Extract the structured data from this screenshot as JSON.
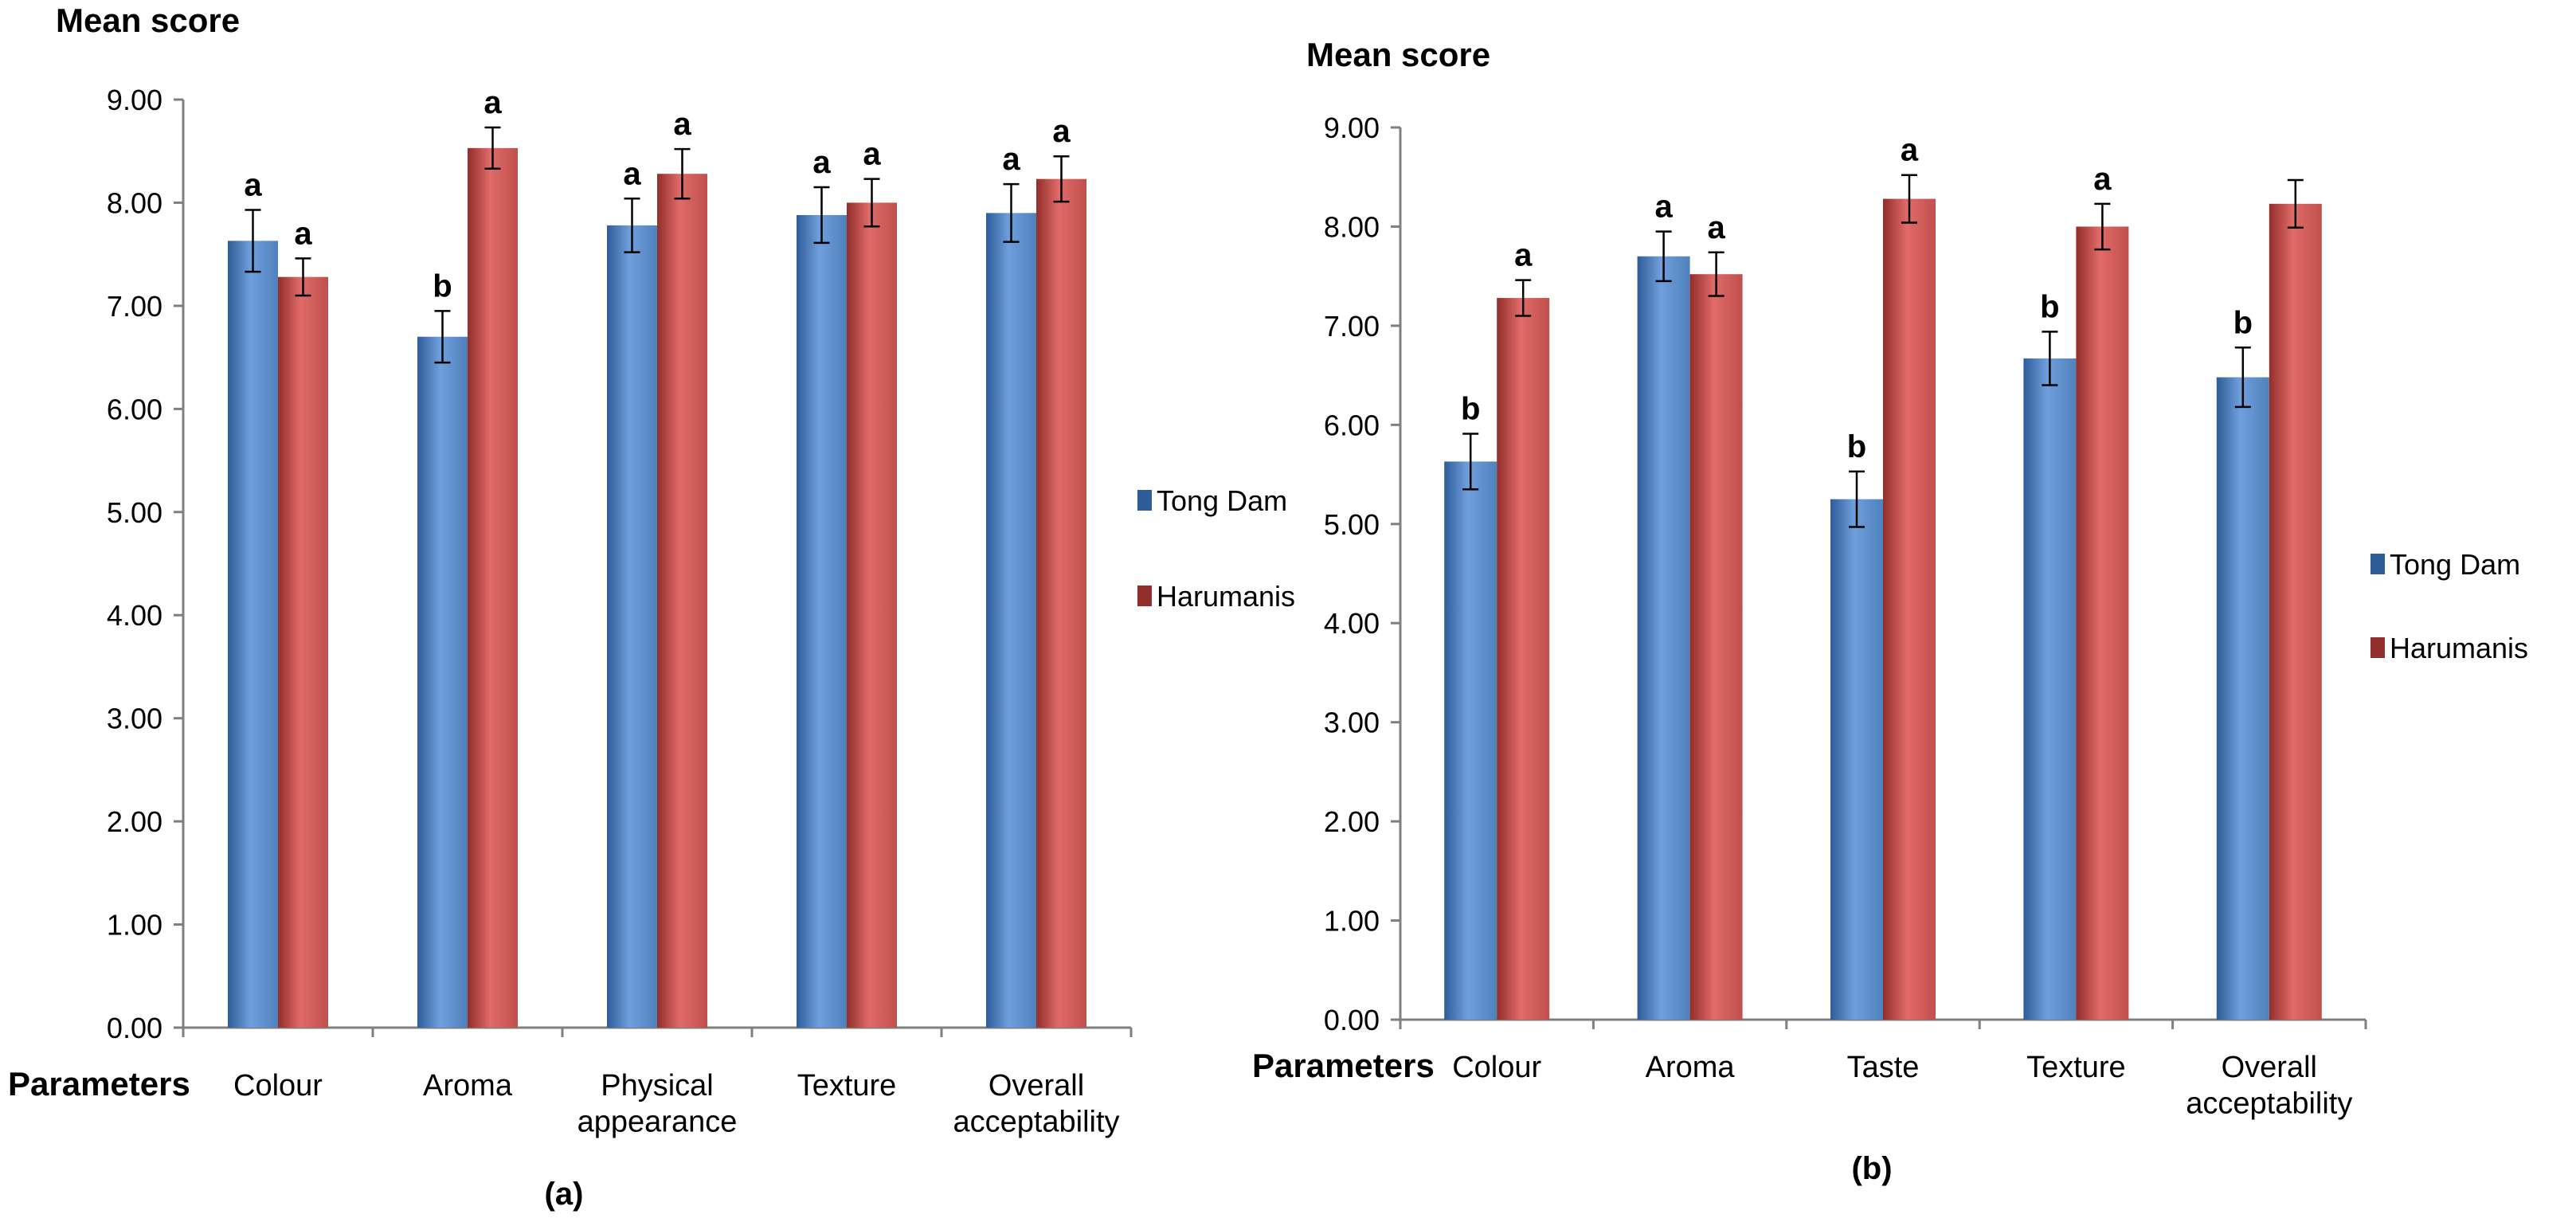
{
  "figure": {
    "legend": [
      "Tong Dam",
      "Harumanis"
    ],
    "colors": {
      "tong_dam": "#4f81bd",
      "tong_dam_dark": "#2e5c99",
      "tong_dam_light": "#6f9fdc",
      "harumanis": "#c0504d",
      "harumanis_dark": "#922e2b",
      "harumanis_light": "#e06b68",
      "axis": "#7f7f7f"
    }
  },
  "chart_data": [
    {
      "type": "bar",
      "panel_label": "(a)",
      "ylabel": "Mean score",
      "xlabel": "Parameters",
      "ylim": [
        0,
        9
      ],
      "y_ticks": [
        "0.00",
        "1.00",
        "2.00",
        "3.00",
        "4.00",
        "5.00",
        "6.00",
        "7.00",
        "8.00",
        "9.00"
      ],
      "categories": [
        [
          "Colour"
        ],
        [
          "Aroma"
        ],
        [
          "Physical",
          "appearance"
        ],
        [
          "Texture"
        ],
        [
          "Overall",
          "acceptability"
        ]
      ],
      "series": [
        {
          "name": "Tong Dam",
          "values": [
            7.63,
            6.7,
            7.78,
            7.88,
            7.9
          ],
          "errors": [
            0.3,
            0.25,
            0.26,
            0.27,
            0.28
          ],
          "labels": [
            "a",
            "b",
            "a",
            "a",
            "a"
          ]
        },
        {
          "name": "Harumanis",
          "values": [
            7.28,
            8.53,
            8.28,
            8.0,
            8.23
          ],
          "errors": [
            0.18,
            0.2,
            0.24,
            0.23,
            0.22
          ],
          "labels": [
            "a",
            "a",
            "a",
            "a",
            "a"
          ]
        }
      ]
    },
    {
      "type": "bar",
      "panel_label": "(b)",
      "ylabel": "Mean score",
      "xlabel": "Parameters",
      "ylim": [
        0,
        9
      ],
      "y_ticks": [
        "0.00",
        "1.00",
        "2.00",
        "3.00",
        "4.00",
        "5.00",
        "6.00",
        "7.00",
        "8.00",
        "9.00"
      ],
      "categories": [
        [
          "Colour"
        ],
        [
          "Aroma"
        ],
        [
          "Taste"
        ],
        [
          "Texture"
        ],
        [
          "Overall",
          "acceptability"
        ]
      ],
      "series": [
        {
          "name": "Tong Dam",
          "values": [
            5.63,
            7.7,
            5.25,
            6.67,
            6.48
          ],
          "errors": [
            0.28,
            0.25,
            0.28,
            0.27,
            0.3
          ],
          "labels": [
            "b",
            "a",
            "b",
            "b",
            "b"
          ]
        },
        {
          "name": "Harumanis",
          "values": [
            7.28,
            7.52,
            8.28,
            8.0,
            8.23
          ],
          "errors": [
            0.18,
            0.22,
            0.24,
            0.23,
            0.24
          ],
          "labels": [
            "a",
            "a",
            "a",
            "a",
            ""
          ]
        }
      ]
    }
  ]
}
